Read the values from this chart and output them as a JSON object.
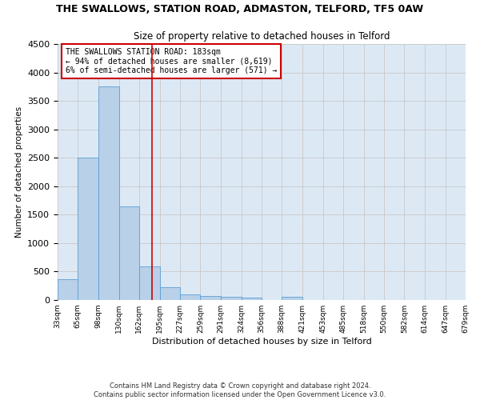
{
  "title": "THE SWALLOWS, STATION ROAD, ADMASTON, TELFORD, TF5 0AW",
  "subtitle": "Size of property relative to detached houses in Telford",
  "xlabel": "Distribution of detached houses by size in Telford",
  "ylabel": "Number of detached properties",
  "footer_line1": "Contains HM Land Registry data © Crown copyright and database right 2024.",
  "footer_line2": "Contains public sector information licensed under the Open Government Licence v3.0.",
  "annotation_line1": "THE SWALLOWS STATION ROAD: 183sqm",
  "annotation_line2": "← 94% of detached houses are smaller (8,619)",
  "annotation_line3": "6% of semi-detached houses are larger (571) →",
  "bar_values": [
    360,
    2500,
    3750,
    1640,
    590,
    220,
    100,
    70,
    55,
    45,
    0,
    55,
    0,
    0,
    0,
    0,
    0,
    0,
    0,
    0
  ],
  "bin_edges": [
    33,
    65,
    98,
    130,
    162,
    195,
    227,
    259,
    291,
    324,
    356,
    388,
    421,
    453,
    485,
    518,
    550,
    582,
    614,
    647,
    679
  ],
  "bar_color": "#b8d0e8",
  "bar_edgecolor": "#5a9fd4",
  "grid_color": "#cccccc",
  "bg_color": "#dce9f5",
  "redline_x": 183,
  "redline_color": "#cc0000",
  "annotation_box_color": "#cc0000",
  "ylim": [
    0,
    4500
  ],
  "yticks": [
    0,
    500,
    1000,
    1500,
    2000,
    2500,
    3000,
    3500,
    4000,
    4500
  ]
}
